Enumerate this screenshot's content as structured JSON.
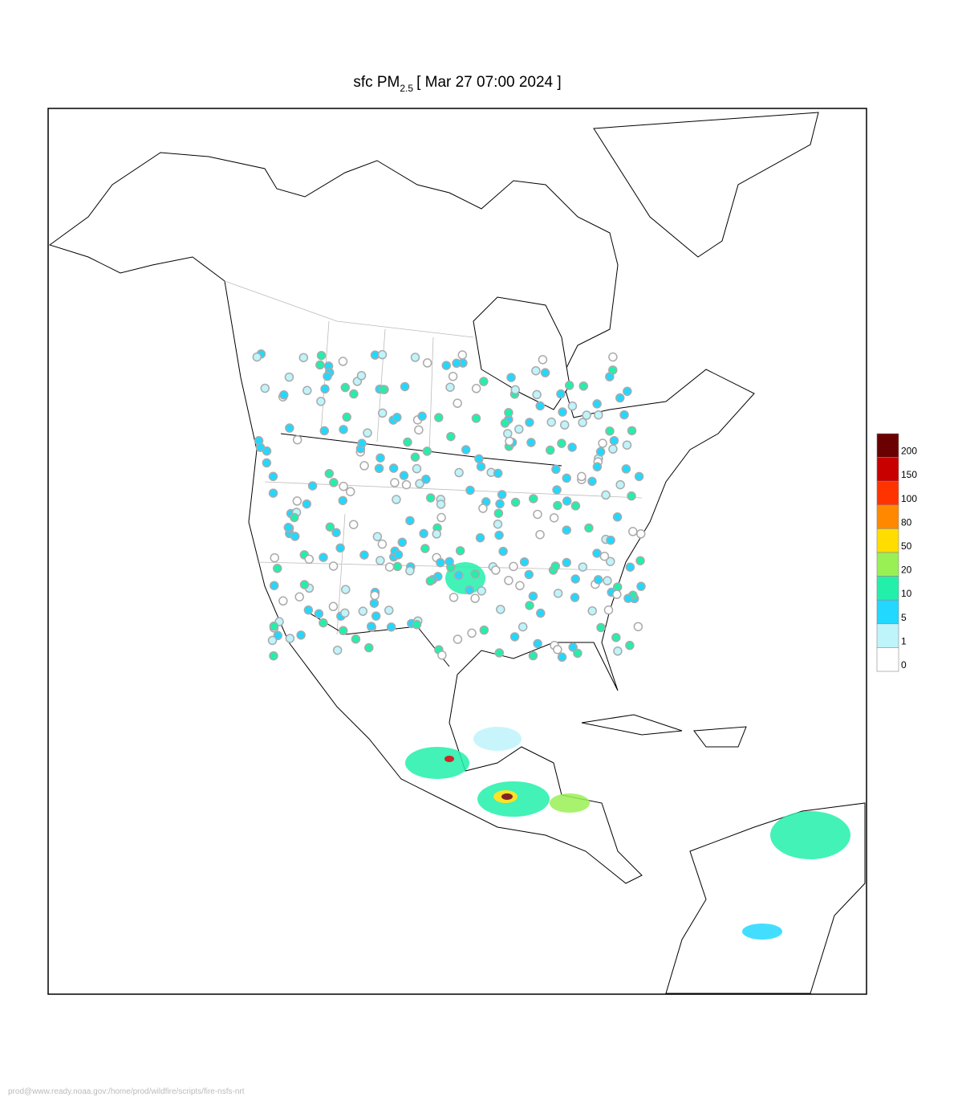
{
  "title": {
    "prefix": "sfc PM",
    "subscript": "2.5",
    "time": "[ Mar 27 07:00 2024 ]"
  },
  "legend": {
    "levels": [
      {
        "label": 200,
        "color": "#6b0000"
      },
      {
        "label": 150,
        "color": "#c80000"
      },
      {
        "label": 100,
        "color": "#ff3300"
      },
      {
        "label": 80,
        "color": "#ff8800"
      },
      {
        "label": 50,
        "color": "#ffdd00"
      },
      {
        "label": 20,
        "color": "#99f055"
      },
      {
        "label": 10,
        "color": "#22f0aa"
      },
      {
        "label": 5,
        "color": "#22d8ff"
      },
      {
        "label": 1,
        "color": "#bff4fb"
      },
      {
        "label": 0,
        "color": "#ffffff"
      }
    ]
  },
  "footer": "prod@www.ready.noaa.gov:/home/prod/wildfire/scripts/fire-nsfs-nrt"
}
